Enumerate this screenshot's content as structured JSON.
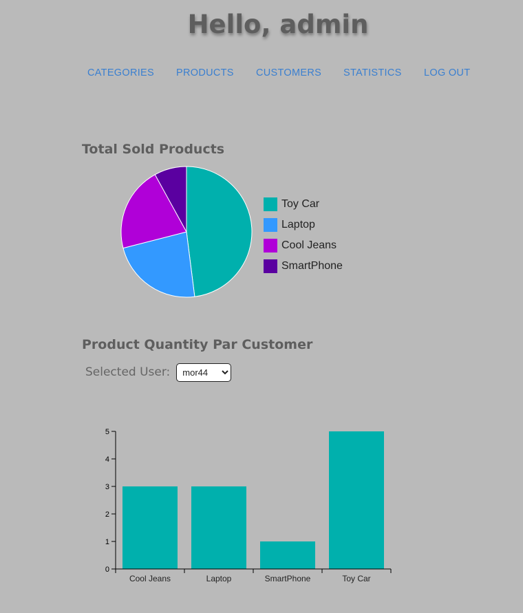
{
  "header": {
    "greeting": "Hello, admin"
  },
  "nav": {
    "items": [
      {
        "label": "CATEGORIES"
      },
      {
        "label": "PRODUCTS"
      },
      {
        "label": "CUSTOMERS"
      },
      {
        "label": "STATISTICS"
      },
      {
        "label": "LOG OUT"
      }
    ]
  },
  "pie_section": {
    "title": "Total Sold Products"
  },
  "bar_section": {
    "title": "Product Quantity Par Customer",
    "user_label": "Selected User:",
    "selected_user": "mor44"
  },
  "colors": {
    "background": "#bababa",
    "link": "#3a7fd0",
    "bar": "#00b0ad"
  },
  "chart_data": [
    {
      "type": "pie",
      "title": "Total Sold Products",
      "labels": [
        "Toy Car",
        "Laptop",
        "Cool Jeans",
        "SmartPhone"
      ],
      "values": [
        48,
        23,
        21,
        8
      ],
      "colors": [
        "#00b0ad",
        "#3399ff",
        "#b000d8",
        "#5a00a0"
      ],
      "legend": "right"
    },
    {
      "type": "bar",
      "title": "Product Quantity Par Customer",
      "categories": [
        "Cool Jeans",
        "Laptop",
        "SmartPhone",
        "Toy Car"
      ],
      "values": [
        3,
        3,
        1,
        5
      ],
      "ylim": [
        0,
        5
      ],
      "yticks": [
        "0",
        "1",
        "2",
        "3",
        "4",
        "5"
      ],
      "color": "#00b0ad",
      "grid": false
    }
  ]
}
